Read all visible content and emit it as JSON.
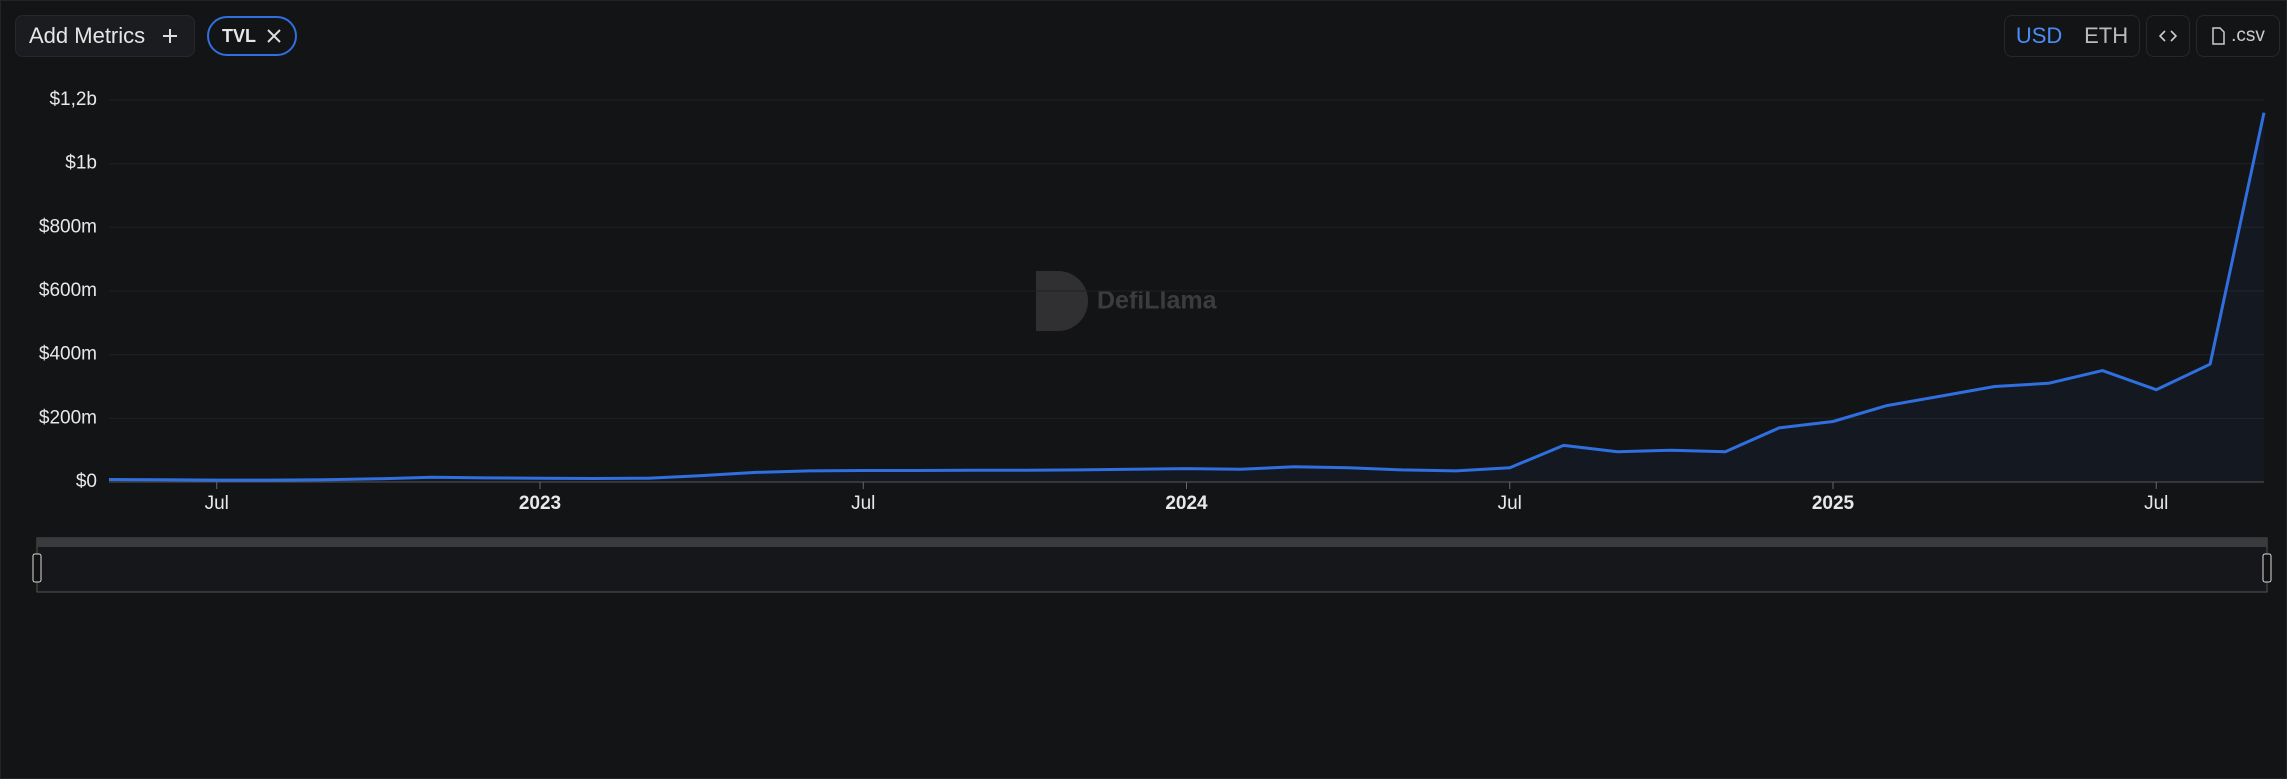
{
  "toolbar": {
    "add_metrics": "Add Metrics",
    "metric": "TVL",
    "currencies": [
      "USD",
      "ETH"
    ],
    "csv": ".csv"
  },
  "watermark": "DefiLlama",
  "chart_data": {
    "type": "line",
    "x": [
      "2022-05",
      "2022-06",
      "2022-07",
      "2022-08",
      "2022-09",
      "2022-10",
      "2022-11",
      "2022-12",
      "2023-01",
      "2023-02",
      "2023-03",
      "2023-04",
      "2023-05",
      "2023-06",
      "2023-07",
      "2023-08",
      "2023-09",
      "2023-10",
      "2023-11",
      "2023-12",
      "2024-01",
      "2024-02",
      "2024-03",
      "2024-04",
      "2024-05",
      "2024-06",
      "2024-07",
      "2024-08",
      "2024-09",
      "2024-10",
      "2024-11",
      "2024-12",
      "2025-01",
      "2025-02",
      "2025-03",
      "2025-04",
      "2025-05",
      "2025-06",
      "2025-07",
      "2025-08",
      "2025-09"
    ],
    "series": [
      {
        "name": "TVL",
        "color": "#2f6fe0",
        "values": [
          8000000,
          7000000,
          6000000,
          6000000,
          7000000,
          10000000,
          15000000,
          13000000,
          12000000,
          11000000,
          12000000,
          20000000,
          30000000,
          35000000,
          36000000,
          36000000,
          37000000,
          37000000,
          38000000,
          40000000,
          42000000,
          40000000,
          48000000,
          45000000,
          38000000,
          35000000,
          45000000,
          115000000,
          95000000,
          100000000,
          95000000,
          170000000,
          190000000,
          240000000,
          270000000,
          300000000,
          310000000,
          350000000,
          290000000,
          370000000,
          1160000000
        ]
      }
    ],
    "xlim": [
      "2022-05",
      "2025-09"
    ],
    "xticks": [
      {
        "value": "2022-07",
        "label": "Jul"
      },
      {
        "value": "2023-01",
        "label": "2023"
      },
      {
        "value": "2023-07",
        "label": "Jul"
      },
      {
        "value": "2024-01",
        "label": "2024"
      },
      {
        "value": "2024-07",
        "label": "Jul"
      },
      {
        "value": "2025-01",
        "label": "2025"
      },
      {
        "value": "2025-07",
        "label": "Jul"
      }
    ],
    "ylim": [
      0,
      1200000000
    ],
    "yticks": [
      {
        "value": 0,
        "label": "$0"
      },
      {
        "value": 200000000,
        "label": "$200m"
      },
      {
        "value": 400000000,
        "label": "$400m"
      },
      {
        "value": 600000000,
        "label": "$600m"
      },
      {
        "value": 800000000,
        "label": "$800m"
      },
      {
        "value": 1000000000,
        "label": "$1b"
      },
      {
        "value": 1200000000,
        "label": "$1,2b"
      }
    ],
    "grid": true
  }
}
